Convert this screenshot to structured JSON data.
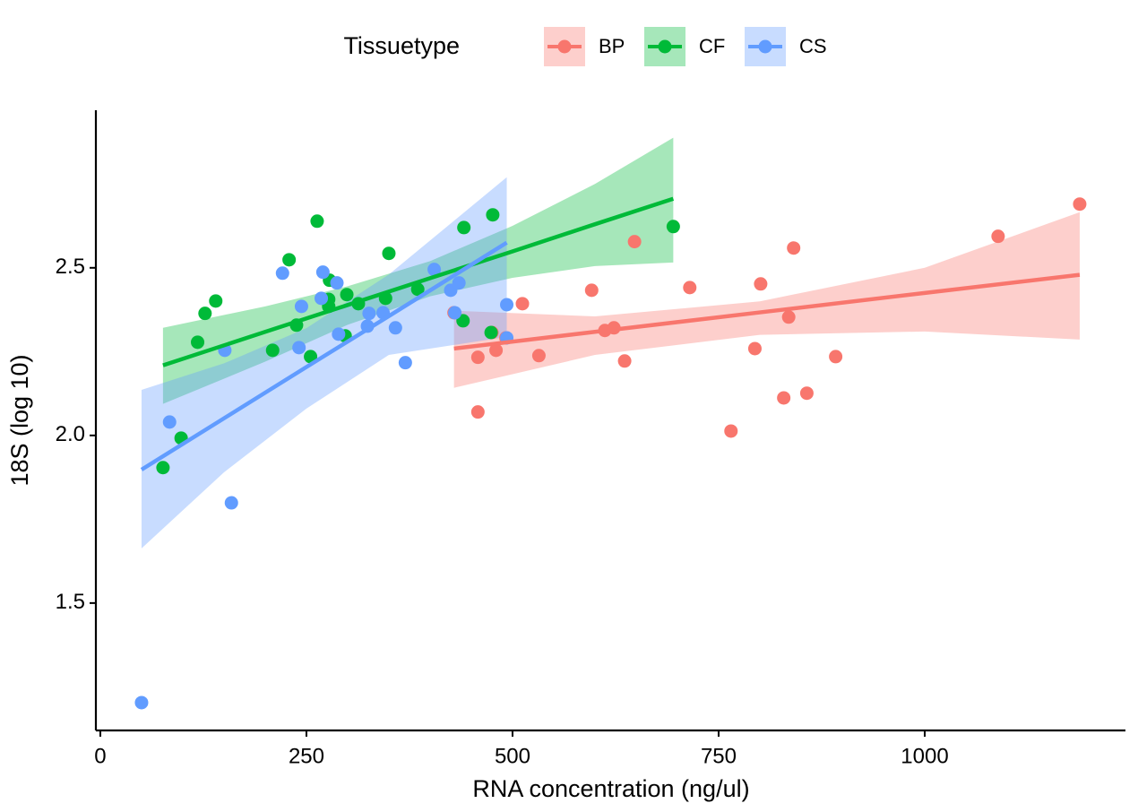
{
  "chart_data": {
    "type": "scatter",
    "legend_title": "Tissuetype",
    "x_label": "RNA concentration (ng/ul)",
    "y_label": "18S (log 10)",
    "xlim": [
      -5.4,
      1243.5
    ],
    "ylim": [
      1.12,
      2.97
    ],
    "xticks": [
      0,
      250,
      500,
      750,
      1000
    ],
    "yticks": [
      1.5,
      {
        "value": 2.0,
        "label": "2.0"
      },
      2.5
    ],
    "legend": "top",
    "series": [
      {
        "name": "BP",
        "color": "#F8766D",
        "x": [
          1188,
          1089,
          841,
          801,
          835,
          715,
          596,
          512,
          623,
          612,
          429,
          794,
          892,
          532,
          636,
          480,
          458,
          458,
          857,
          829,
          765,
          648,
          475,
          492
        ],
        "y": [
          2.69,
          2.594,
          2.559,
          2.452,
          2.353,
          2.441,
          2.433,
          2.393,
          2.321,
          2.313,
          2.366,
          2.259,
          2.235,
          2.238,
          2.222,
          2.254,
          2.233,
          2.07,
          2.126,
          2.112,
          2.013,
          2.578,
          2.307,
          2.291
        ],
        "fit": {
          "x": [
            429,
            600,
            800,
            1000,
            1188
          ],
          "y": [
            2.259,
            2.309,
            2.367,
            2.425,
            2.479
          ],
          "lower": [
            2.142,
            2.24,
            2.3,
            2.31,
            2.286
          ],
          "upper": [
            2.372,
            2.355,
            2.4,
            2.5,
            2.666
          ]
        }
      },
      {
        "name": "CF",
        "color": "#00BA38",
        "x": [
          263,
          476,
          695,
          441,
          229,
          350,
          140,
          127,
          118,
          278,
          299,
          277,
          277,
          313,
          346,
          385,
          238,
          440,
          297,
          255,
          209,
          76,
          98,
          474
        ],
        "y": [
          2.639,
          2.658,
          2.623,
          2.62,
          2.524,
          2.543,
          2.401,
          2.364,
          2.278,
          2.463,
          2.42,
          2.406,
          2.385,
          2.393,
          2.409,
          2.436,
          2.329,
          2.342,
          2.297,
          2.235,
          2.254,
          1.904,
          1.992,
          2.307
        ],
        "fit": {
          "x": [
            76,
            200,
            300,
            400,
            500,
            600,
            695
          ],
          "y": [
            2.209,
            2.309,
            2.389,
            2.469,
            2.549,
            2.63,
            2.706
          ],
          "lower": [
            2.094,
            2.22,
            2.33,
            2.415,
            2.47,
            2.505,
            2.516
          ],
          "upper": [
            2.321,
            2.385,
            2.445,
            2.52,
            2.625,
            2.75,
            2.888
          ]
        }
      },
      {
        "name": "CS",
        "color": "#619CFF",
        "x": [
          50,
          159,
          84,
          151,
          221,
          270,
          287,
          268,
          244,
          241,
          289,
          326,
          324,
          343,
          358,
          370,
          405,
          425,
          435,
          493,
          493,
          430
        ],
        "y": [
          1.203,
          1.799,
          2.04,
          2.254,
          2.484,
          2.487,
          2.455,
          2.409,
          2.385,
          2.262,
          2.302,
          2.364,
          2.326,
          2.366,
          2.321,
          2.217,
          2.495,
          2.433,
          2.455,
          2.39,
          2.291,
          2.366
        ],
        "fit": {
          "x": [
            50,
            150,
            250,
            350,
            493
          ],
          "y": [
            1.898,
            2.051,
            2.204,
            2.356,
            2.575
          ],
          "lower": [
            1.663,
            1.89,
            2.08,
            2.24,
            2.294
          ],
          "upper": [
            2.136,
            2.215,
            2.32,
            2.48,
            2.77
          ]
        }
      }
    ]
  }
}
